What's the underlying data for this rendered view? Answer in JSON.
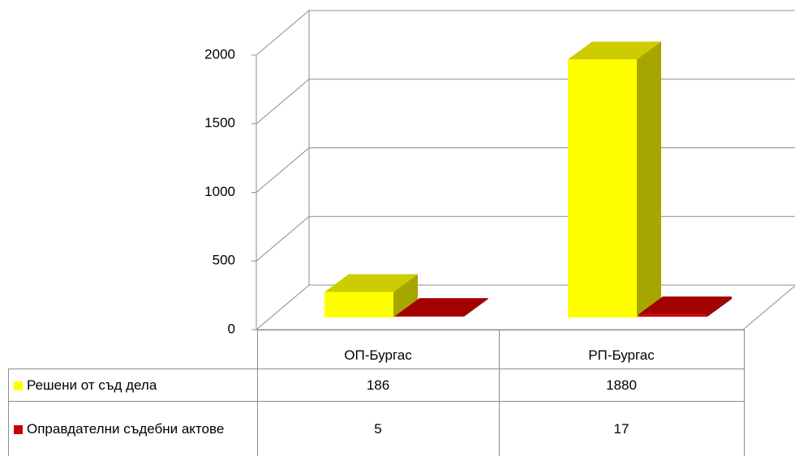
{
  "chart_data": {
    "type": "bar3d",
    "categories": [
      "ОП-Бургас",
      "РП-Бургас"
    ],
    "series": [
      {
        "name": "Решени от съд дела",
        "color": "#ffff00",
        "values": [
          186,
          1880
        ]
      },
      {
        "name": "Оправдателни съдебни актове",
        "color": "#cc0000",
        "values": [
          5,
          17
        ]
      }
    ],
    "ylim": [
      0,
      2000
    ],
    "yticks": [
      0,
      500,
      1000,
      1500,
      2000
    ],
    "grid": true
  }
}
